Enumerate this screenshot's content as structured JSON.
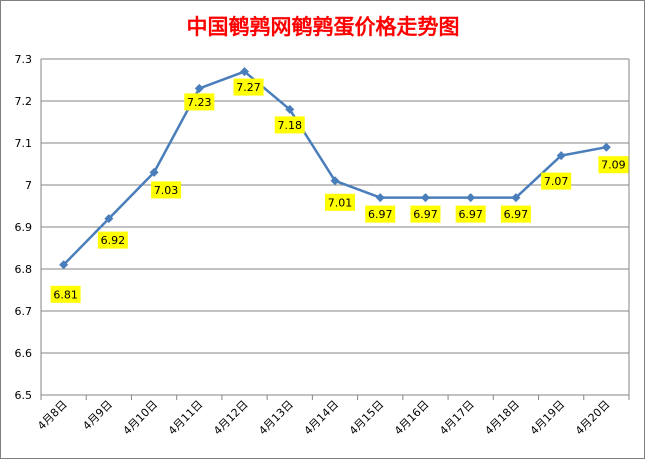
{
  "chart_data": {
    "type": "line",
    "title": "中国鹌鹑网鹌鹑蛋价格走势图",
    "xlabel": "",
    "ylabel": "",
    "categories": [
      "4月8日",
      "4月9日",
      "4月10日",
      "4月11日",
      "4月12日",
      "4月13日",
      "4月14日",
      "4月15日",
      "4月16日",
      "4月17日",
      "4月18日",
      "4月19日",
      "4月20日"
    ],
    "series": [
      {
        "values": [
          6.81,
          6.92,
          7.03,
          7.23,
          7.27,
          7.18,
          7.01,
          6.97,
          6.97,
          6.97,
          6.97,
          7.07,
          7.09
        ]
      }
    ],
    "data_labels": [
      "6.81",
      "6.92",
      "7.03",
      "7.23",
      "7.27",
      "7.18",
      "7.01",
      "6.97",
      "6.97",
      "6.97",
      "6.97",
      "7.07",
      "7.09"
    ],
    "yticks": [
      "6.5",
      "6.6",
      "6.7",
      "6.8",
      "6.9",
      "7",
      "7.1",
      "7.2",
      "7.3"
    ],
    "ylim": [
      6.5,
      7.3
    ],
    "grid": true,
    "legend": "none",
    "colors": {
      "line": "#4a7ebb",
      "label_bg": "#ffff00",
      "title": "#ff0000",
      "grid": "#868686"
    }
  }
}
